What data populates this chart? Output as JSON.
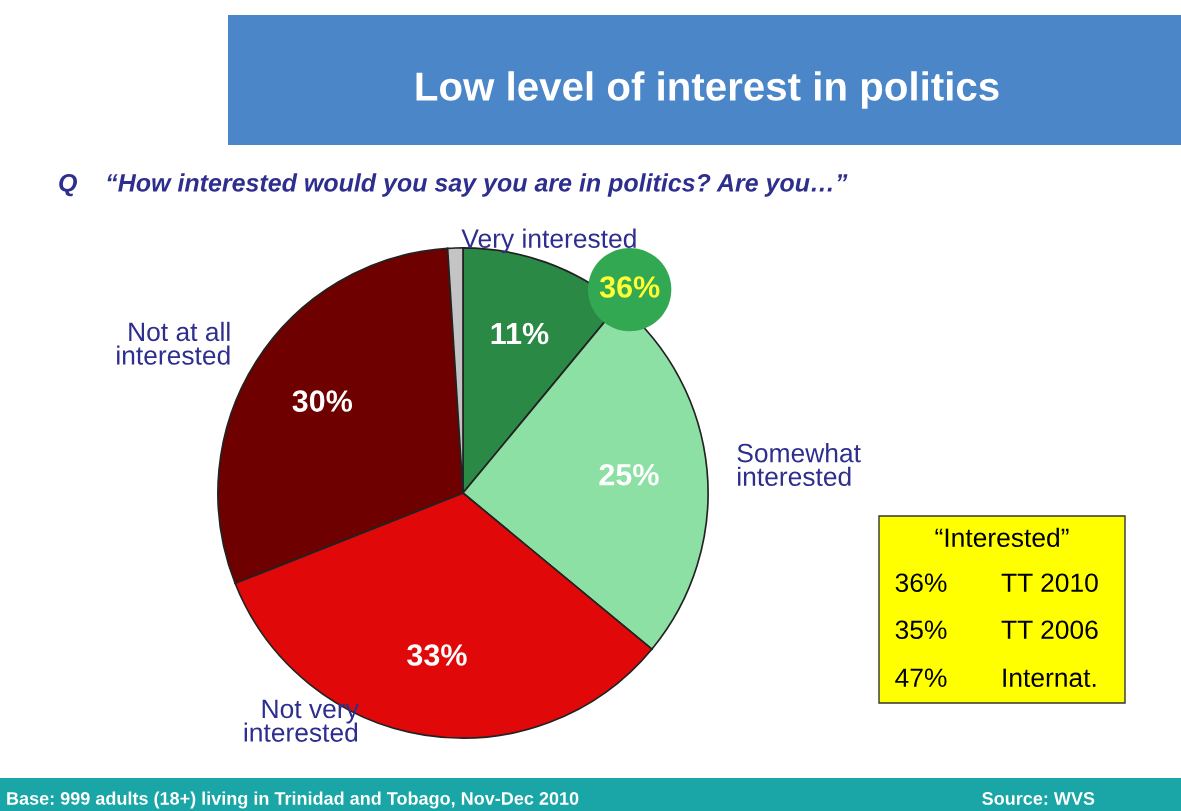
{
  "chart_data": {
    "type": "pie",
    "title": "Low level of interest in politics",
    "subtitle": "Q    “How interested would you say you are in politics? Are you…”",
    "categories": [
      "Very interested",
      "Somewhat interested",
      "Not very interested",
      "Not at all interested",
      null
    ],
    "values": [
      11,
      25,
      33,
      30,
      1
    ],
    "colors": [
      "#2a8a45",
      "#8de0a4",
      "#e00808",
      "#6e0000",
      "#c4c4c4"
    ],
    "value_labels": [
      "11%",
      "25%",
      "33%",
      "30%",
      null
    ],
    "annotations": [
      "36%",
      "“Interested”",
      "36%",
      "TT 2010",
      "35%",
      "TT 2006",
      "47%",
      "Internat.",
      "Base: 999 adults (18+) living in Trinidad and Tobago, Nov-Dec 2010",
      "Source: WVS"
    ],
    "legend": false
  }
}
